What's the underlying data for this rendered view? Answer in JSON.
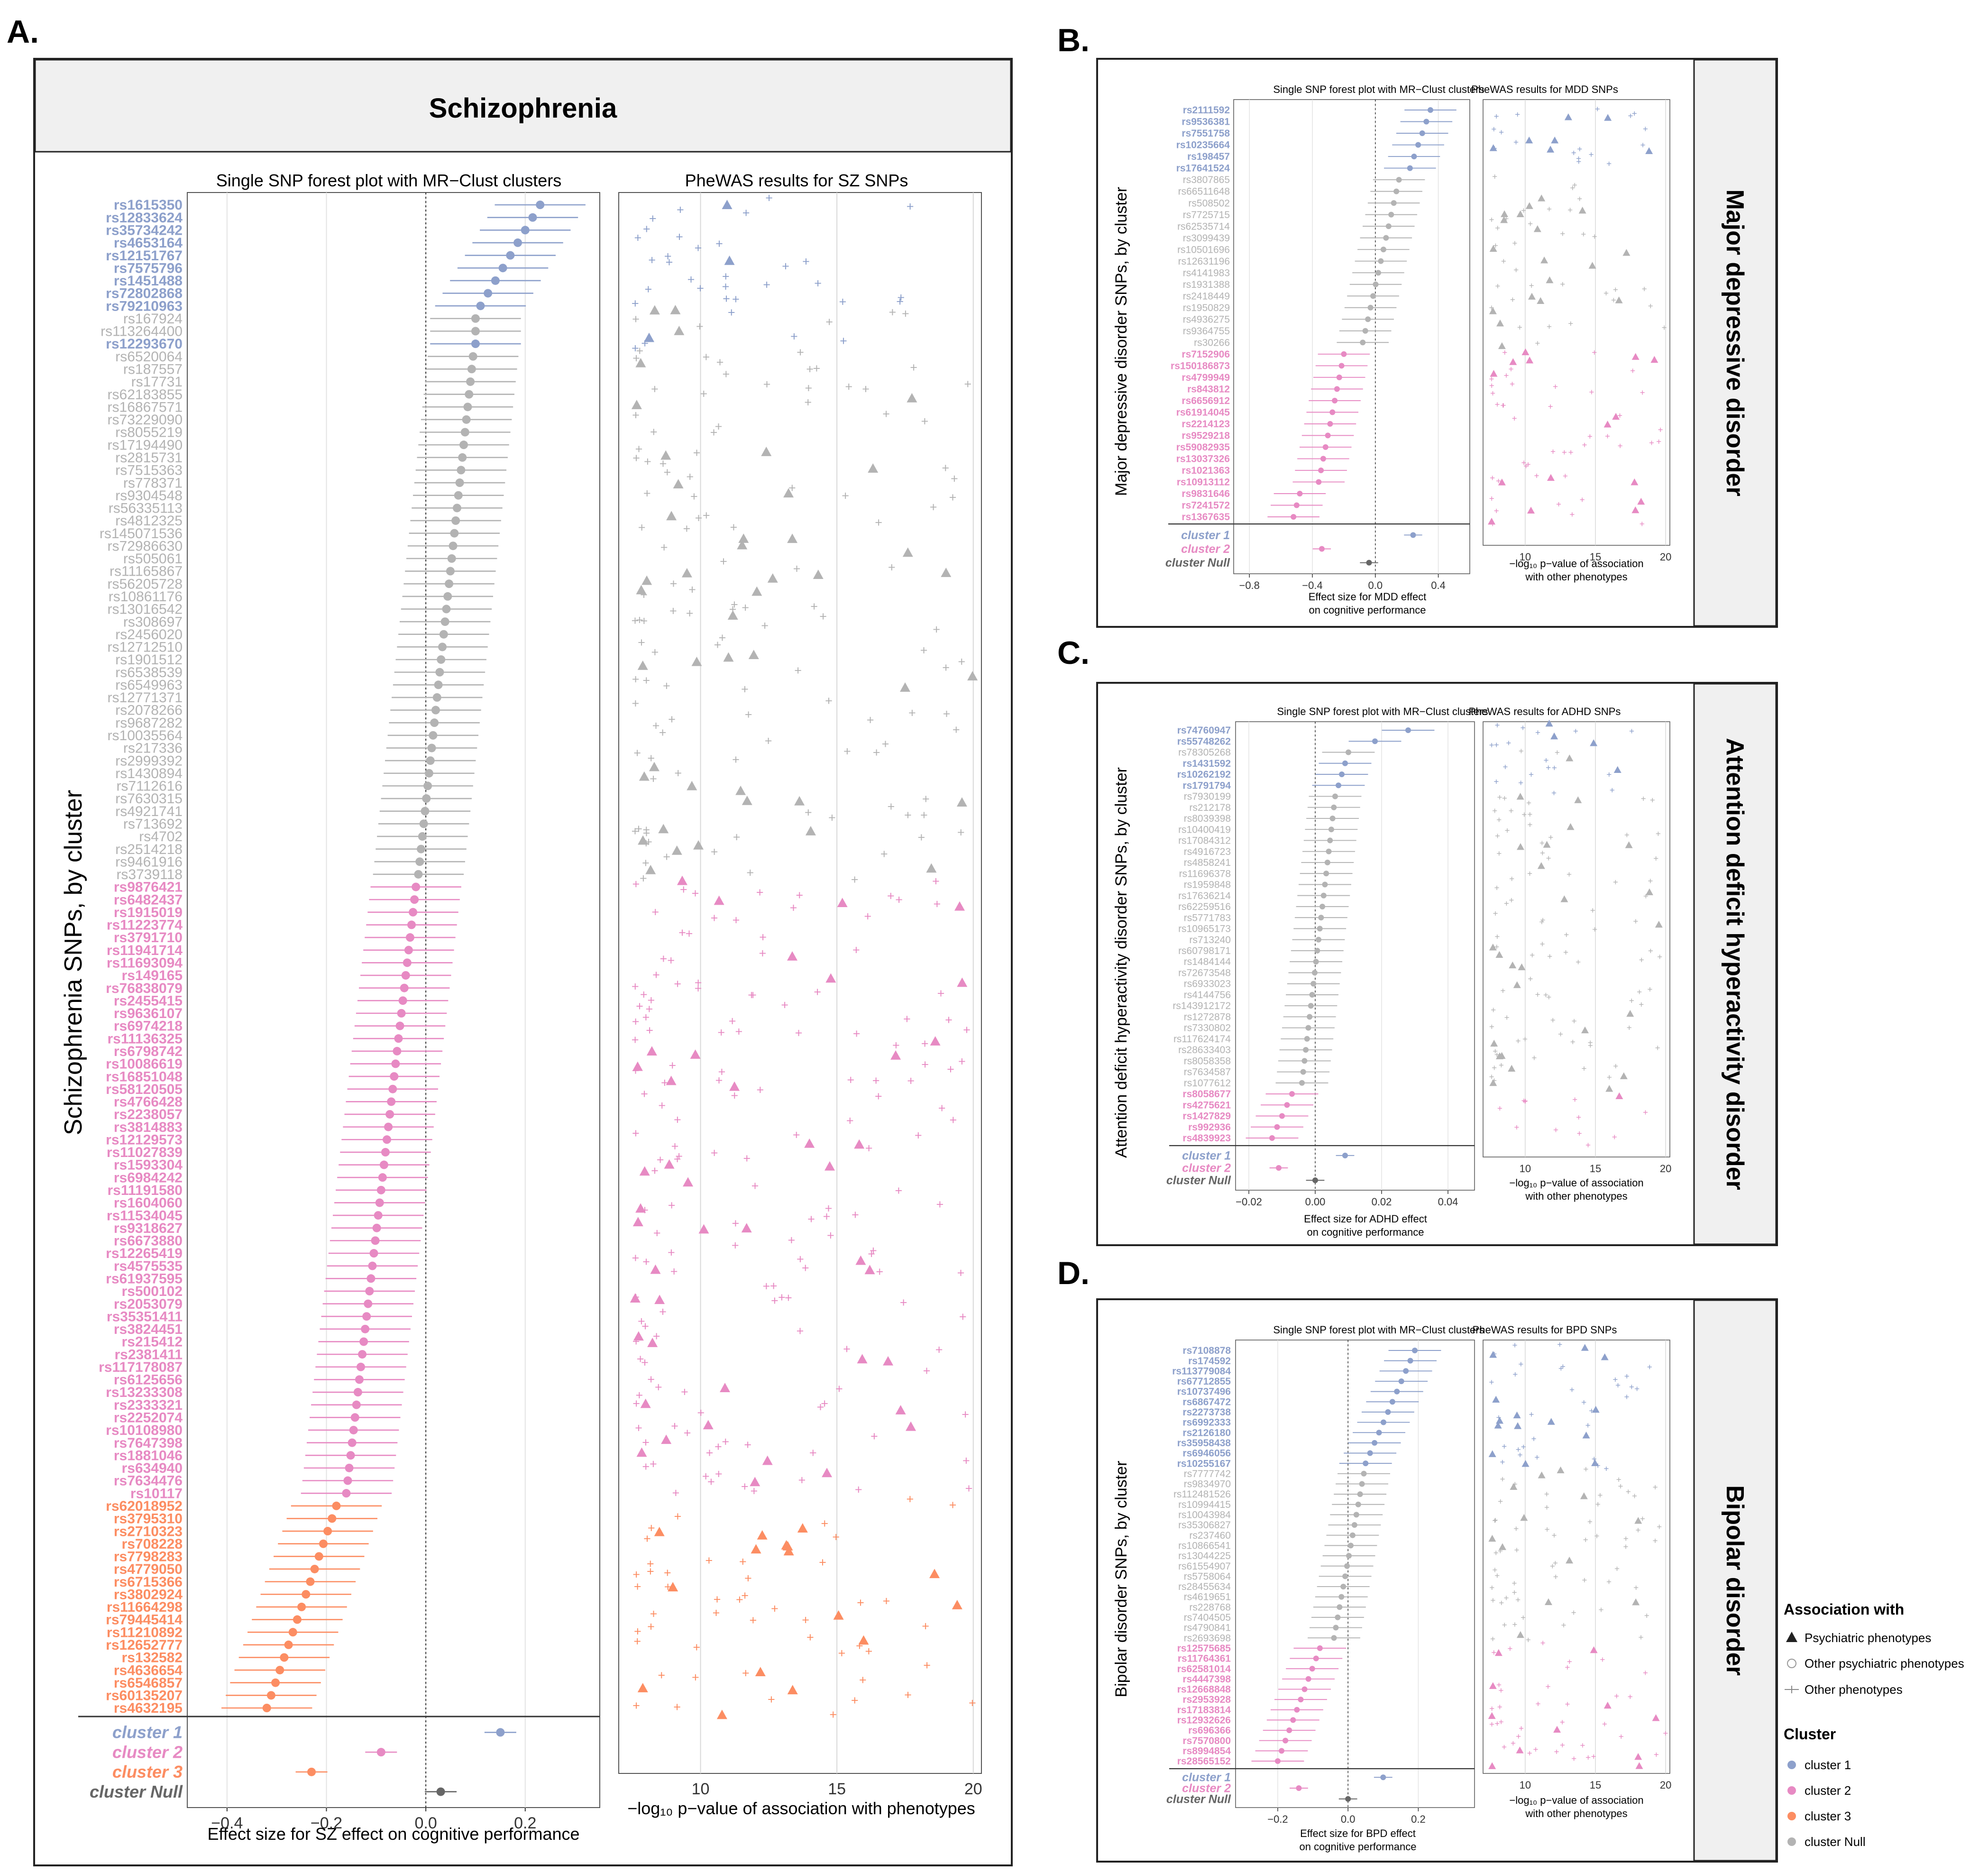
{
  "figure": {
    "panels": [
      {
        "letter": "A.",
        "title": "Schizophrenia",
        "forest_title": "Single SNP forest plot with MR−Clust clusters",
        "phewas_title": "PheWAS results for SZ SNPs",
        "ylabel": "Schizophrenia SNPs, by cluster",
        "forest_xlabel": "Effect size for SZ effect on cognitive performance",
        "phewas_xlabel": "−log₁₀ p−value of association with phenotypes"
      },
      {
        "letter": "B.",
        "title": "Major depressive disorder",
        "forest_title": "Single SNP forest plot with MR−Clust clusters",
        "phewas_title": "PheWAS results for MDD SNPs",
        "ylabel": "Major depressive disorder SNPs, by cluster",
        "forest_xlabel": [
          "Effect size for MDD effect",
          "on cognitive performance"
        ],
        "phewas_xlabel": [
          "−log₁₀ p−value of association",
          "with other phenotypes"
        ]
      },
      {
        "letter": "C.",
        "title": "Attention deficit hyperactivity disorder",
        "forest_title": "Single SNP forest plot with MR−Clust clusters",
        "phewas_title": "PheWAS results for ADHD SNPs",
        "ylabel": "Attention deficit hyperactivity disorder SNPs, by cluster",
        "forest_xlabel": [
          "Effect size for ADHD effect",
          "on cognitive performance"
        ],
        "phewas_xlabel": [
          "−log₁₀ p−value of association",
          "with other phenotypes"
        ]
      },
      {
        "letter": "D.",
        "title": "Bipolar disorder",
        "forest_title": "Single SNP forest plot with MR−Clust clusters",
        "phewas_title": "PheWAS results for BPD SNPs",
        "ylabel": "Bipolar disorder SNPs, by cluster",
        "forest_xlabel": [
          "Effect size for BPD effect",
          "on cognitive performance"
        ],
        "phewas_xlabel": [
          "−log₁₀ p−value of association",
          "with other phenotypes"
        ]
      }
    ],
    "legend": {
      "assoc_title": "Association with",
      "assoc_items": [
        "Psychiatric phenotypes",
        "Other psychiatric phenotypes",
        "Other phenotypes"
      ],
      "cluster_title": "Cluster",
      "cluster_items": [
        "cluster 1",
        "cluster 2",
        "cluster 3",
        "cluster Null"
      ]
    }
  },
  "colors": {
    "cluster 1": "#8da0cb",
    "cluster 2": "#e78ac3",
    "cluster 3": "#fc8d62",
    "cluster Null": "#b3b3b3",
    "null_summary": "#666666"
  },
  "chart_data": [
    {
      "panel": "A",
      "type": "forest",
      "xlim": [
        -0.48,
        0.35
      ],
      "xticks": [
        -0.4,
        -0.2,
        0.0,
        0.2
      ],
      "xticklabels": [
        "−0.4",
        "−0.2",
        "0.0",
        "0.2"
      ],
      "phewas_xlim": [
        7,
        20.3
      ],
      "phewas_xticks": [
        10,
        15,
        20
      ],
      "groups": [
        {
          "cluster": "cluster 1",
          "snps": [
            "rs1615350",
            "rs12833624",
            "rs35734242",
            "rs4653164",
            "rs12151767",
            "rs7575796",
            "rs1451488",
            "rs72802868",
            "rs79210963"
          ],
          "start": 0.23,
          "end": 0.11
        },
        {
          "cluster": "cluster Null",
          "snps": [
            "rs167924",
            "rs113264400"
          ],
          "start": 0.1,
          "end": 0.1
        },
        {
          "cluster": "cluster 1",
          "snps": [
            "rs12293670"
          ],
          "start": 0.1,
          "end": 0.1
        },
        {
          "cluster": "cluster Null",
          "snps": [
            "rs6520064",
            "rs187557",
            "rs17731",
            "rs62183855",
            "rs16867571",
            "rs73229090",
            "rs8055219",
            "rs17194490",
            "rs2815731",
            "rs7515363",
            "rs778371",
            "rs9304548",
            "rs56335113",
            "rs4812325",
            "rs145071536",
            "rs72986630",
            "rs505061",
            "rs11165867",
            "rs56205728",
            "rs10861176",
            "rs13016542",
            "rs308697",
            "rs2456020",
            "rs12712510",
            "rs1901512",
            "rs6538539",
            "rs6549963",
            "rs12771371",
            "rs2078266",
            "rs9687282",
            "rs10035564",
            "rs217336",
            "rs2999392",
            "rs1430894",
            "rs7112616",
            "rs7630315",
            "rs4921741",
            "rs713692",
            "rs4702",
            "rs2514218",
            "rs9461916",
            "rs3739118"
          ],
          "start": 0.095,
          "end": -0.015
        },
        {
          "cluster": "cluster 2",
          "snps": [
            "rs9876421",
            "rs6482437",
            "rs1915019",
            "rs11223774",
            "rs3791710",
            "rs11941714",
            "rs11693094",
            "rs149165",
            "rs76838079",
            "rs2455415",
            "rs9636107",
            "rs6974218",
            "rs11136325",
            "rs6798742",
            "rs10086619",
            "rs16851048",
            "rs58120505",
            "rs4766428",
            "rs2238057",
            "rs3814883",
            "rs12129573",
            "rs11027839",
            "rs1593304",
            "rs6984242",
            "rs11191580",
            "rs1604060",
            "rs11534045",
            "rs9318627",
            "rs6673880",
            "rs12265419",
            "rs4575535",
            "rs61937595",
            "rs500102",
            "rs2053079",
            "rs35351411",
            "rs3824451",
            "rs215412",
            "rs2381411",
            "rs117178087",
            "rs6125656",
            "rs13233308",
            "rs2333321",
            "rs2252074",
            "rs10108980",
            "rs7647398",
            "rs1881046",
            "rs634940",
            "rs7634476",
            "rs10117"
          ],
          "start": -0.02,
          "end": -0.16
        },
        {
          "cluster": "cluster 3",
          "snps": [
            "rs62018952",
            "rs3795310",
            "rs2710323",
            "rs708228",
            "rs7798283",
            "rs4779050",
            "rs6715366",
            "rs3802924",
            "rs11664298",
            "rs79445414",
            "rs11210892",
            "rs12652777",
            "rs132582",
            "rs4636654",
            "rs6546857",
            "rs60135207",
            "rs4632195"
          ],
          "start": -0.18,
          "end": -0.32
        }
      ],
      "summary": [
        {
          "label": "cluster 1",
          "value": 0.15
        },
        {
          "label": "cluster 2",
          "value": -0.09
        },
        {
          "label": "cluster 3",
          "value": -0.23
        },
        {
          "label": "cluster Null",
          "value": 0.03
        }
      ]
    },
    {
      "panel": "B",
      "type": "forest",
      "xlim": [
        -0.9,
        0.6
      ],
      "xticks": [
        -0.8,
        -0.4,
        0.0,
        0.4
      ],
      "xticklabels": [
        "−0.8",
        "−0.4",
        "0.0",
        "0.4"
      ],
      "phewas_xlim": [
        7,
        20.3
      ],
      "phewas_xticks": [
        10,
        15,
        20
      ],
      "groups": [
        {
          "cluster": "cluster 1",
          "snps": [
            "rs2111592",
            "rs9536381",
            "rs7551758",
            "rs10235664",
            "rs198457",
            "rs17641524"
          ],
          "start": 0.35,
          "end": 0.22
        },
        {
          "cluster": "cluster Null",
          "snps": [
            "rs3807865",
            "rs66511648",
            "rs508502",
            "rs7725715",
            "rs62535714",
            "rs3099439",
            "rs10501696",
            "rs12631196",
            "rs4141983",
            "rs1931388",
            "rs2418449",
            "rs1950829",
            "rs4936275",
            "rs9364755",
            "rs30266"
          ],
          "start": 0.15,
          "end": -0.08
        },
        {
          "cluster": "cluster 2",
          "snps": [
            "rs7152906",
            "rs150186873",
            "rs4799949",
            "rs843812",
            "rs6656912",
            "rs61914045",
            "rs2214123",
            "rs9529218",
            "rs59082935",
            "rs13037326",
            "rs1021363",
            "rs10913112"
          ],
          "start": -0.2,
          "end": -0.36
        },
        {
          "cluster": "cluster 2",
          "snps": [
            "rs9831646",
            "rs7241572",
            "rs1367635"
          ],
          "start": -0.48,
          "end": -0.52
        }
      ],
      "summary": [
        {
          "label": "cluster 1",
          "value": 0.24
        },
        {
          "label": "cluster 2",
          "value": -0.34
        },
        {
          "label": "cluster Null",
          "value": -0.04
        }
      ]
    },
    {
      "panel": "C",
      "type": "forest",
      "xlim": [
        -0.024,
        0.048
      ],
      "xticks": [
        -0.02,
        0.0,
        0.02,
        0.04
      ],
      "xticklabels": [
        "−0.02",
        "0.00",
        "0.02",
        "0.04"
      ],
      "phewas_xlim": [
        7,
        20.3
      ],
      "phewas_xticks": [
        10,
        15,
        20
      ],
      "groups": [
        {
          "cluster": "cluster 1",
          "snps": [
            "rs74760947",
            "rs55748262"
          ],
          "start": 0.028,
          "end": 0.018
        },
        {
          "cluster": "cluster Null",
          "snps": [
            "rs78305268"
          ],
          "start": 0.01,
          "end": 0.01
        },
        {
          "cluster": "cluster 1",
          "snps": [
            "rs1431592",
            "rs10262192",
            "rs1791794"
          ],
          "start": 0.009,
          "end": 0.007
        },
        {
          "cluster": "cluster Null",
          "snps": [
            "rs7930199",
            "rs212178",
            "rs8039398",
            "rs10400419",
            "rs17084312",
            "rs4916723",
            "rs4858241",
            "rs11696378",
            "rs1959848",
            "rs17636214",
            "rs62259516",
            "rs5771783",
            "rs10965173",
            "rs713240",
            "rs60798171",
            "rs1484144",
            "rs72673548",
            "rs6933023",
            "rs4144756",
            "rs143912172",
            "rs1272878",
            "rs7330802",
            "rs117624174",
            "rs28633403",
            "rs8058358",
            "rs7634587",
            "rs1077612"
          ],
          "start": 0.006,
          "end": -0.004
        },
        {
          "cluster": "cluster 2",
          "snps": [
            "rs8058677",
            "rs4275621",
            "rs1427829",
            "rs992936",
            "rs4839923"
          ],
          "start": -0.007,
          "end": -0.013
        }
      ],
      "summary": [
        {
          "label": "cluster 1",
          "value": 0.009
        },
        {
          "label": "cluster 2",
          "value": -0.011
        },
        {
          "label": "cluster Null",
          "value": 0.0
        }
      ]
    },
    {
      "panel": "D",
      "type": "forest",
      "xlim": [
        -0.32,
        0.36
      ],
      "xticks": [
        -0.2,
        0.0,
        0.2
      ],
      "xticklabels": [
        "−0.2",
        "0.0",
        "0.2"
      ],
      "phewas_xlim": [
        7,
        20.3
      ],
      "phewas_xticks": [
        10,
        15,
        20
      ],
      "groups": [
        {
          "cluster": "cluster 1",
          "snps": [
            "rs7108878",
            "rs174592",
            "rs113779084",
            "rs67712855",
            "rs10737496",
            "rs6867472",
            "rs2273738",
            "rs6992333",
            "rs2126180",
            "rs35958438",
            "rs6946056",
            "rs10255167"
          ],
          "start": 0.19,
          "end": 0.05
        },
        {
          "cluster": "cluster Null",
          "snps": [
            "rs7777742",
            "rs9834970",
            "rs112481526",
            "rs10994415",
            "rs10043984",
            "rs35306827",
            "rs237460",
            "rs10866541",
            "rs13044225",
            "rs61554907",
            "rs5758064",
            "rs28455634",
            "rs4619651",
            "rs228768",
            "rs7404505",
            "rs4790841",
            "rs2693698"
          ],
          "start": 0.045,
          "end": -0.04
        },
        {
          "cluster": "cluster 2",
          "snps": [
            "rs12575685",
            "rs11764361",
            "rs62581014",
            "rs4447398",
            "rs12668848",
            "rs2953928",
            "rs17183814",
            "rs12932626",
            "rs696366",
            "rs7570800",
            "rs8994854",
            "rs28565152"
          ],
          "start": -0.08,
          "end": -0.2
        }
      ],
      "summary": [
        {
          "label": "cluster 1",
          "value": 0.1
        },
        {
          "label": "cluster 2",
          "value": -0.14
        },
        {
          "label": "cluster Null",
          "value": 0.0
        }
      ]
    }
  ]
}
